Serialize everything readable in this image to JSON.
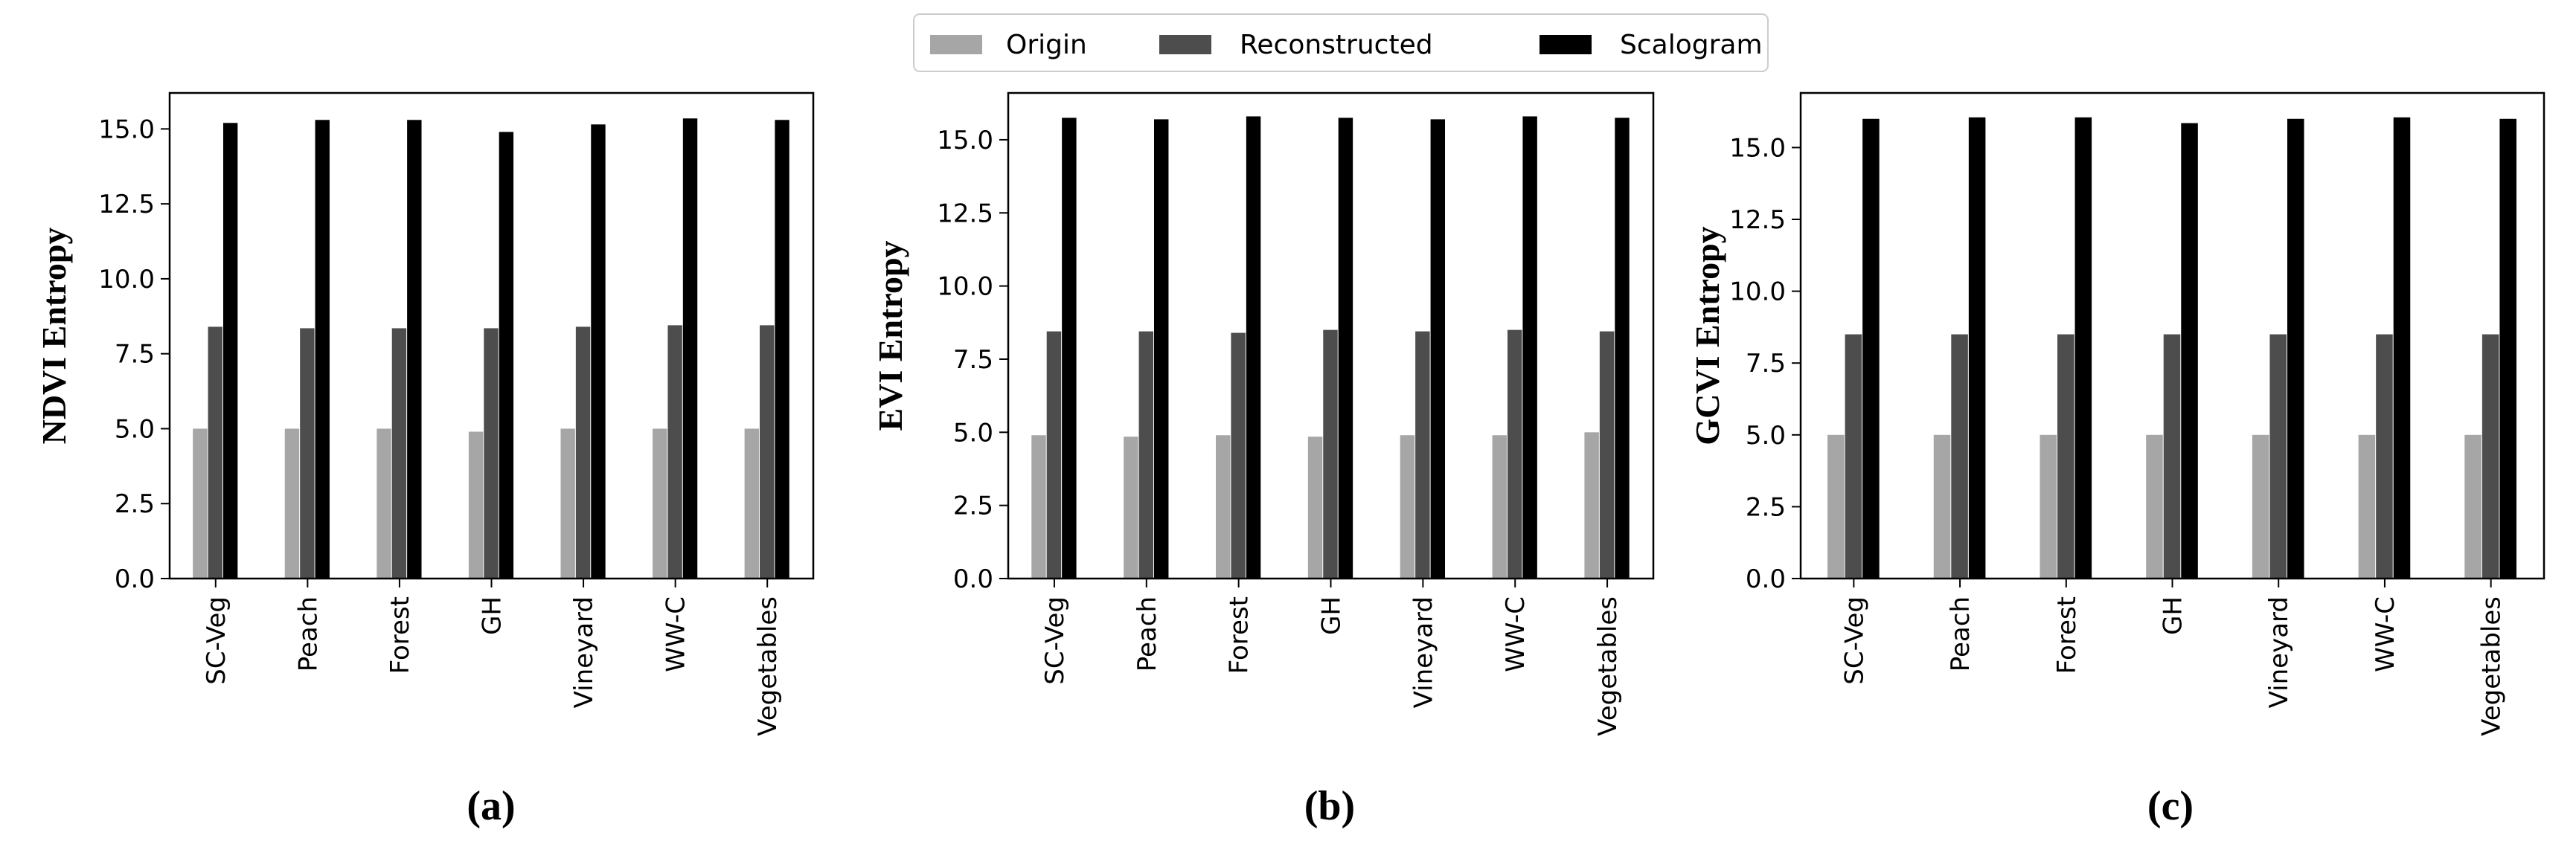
{
  "legend": {
    "entries": [
      {
        "name": "Origin",
        "color": "#a6a6a6"
      },
      {
        "name": "Reconstructed",
        "color": "#4d4d4d"
      },
      {
        "name": "Scalogram",
        "color": "#000000"
      }
    ],
    "placement": "top-center"
  },
  "chart_data": [
    {
      "type": "bar",
      "panel_label": "(a)",
      "ylabel": "NDVI Entropy",
      "categories": [
        "SC-Veg",
        "Peach",
        "Forest",
        "GH",
        "Vineyard",
        "WW-C",
        "Vegetables"
      ],
      "yticks": [
        "0.0",
        "2.5",
        "5.0",
        "7.5",
        "10.0",
        "12.5",
        "15.0"
      ],
      "ylim": [
        0,
        16.2
      ],
      "series": [
        {
          "name": "Origin",
          "values": [
            5.0,
            5.0,
            5.0,
            4.9,
            5.0,
            5.0,
            5.0
          ]
        },
        {
          "name": "Reconstructed",
          "values": [
            8.4,
            8.35,
            8.35,
            8.35,
            8.4,
            8.45,
            8.45
          ]
        },
        {
          "name": "Scalogram",
          "values": [
            15.2,
            15.3,
            15.3,
            14.9,
            15.15,
            15.35,
            15.3
          ]
        }
      ]
    },
    {
      "type": "bar",
      "panel_label": "(b)",
      "ylabel": "EVI Entropy",
      "categories": [
        "SC-Veg",
        "Peach",
        "Forest",
        "GH",
        "Vineyard",
        "WW-C",
        "Vegetables"
      ],
      "yticks": [
        "0.0",
        "2.5",
        "5.0",
        "7.5",
        "10.0",
        "12.5",
        "15.0"
      ],
      "ylim": [
        0,
        16.6
      ],
      "series": [
        {
          "name": "Origin",
          "values": [
            4.9,
            4.85,
            4.9,
            4.85,
            4.9,
            4.9,
            5.0
          ]
        },
        {
          "name": "Reconstructed",
          "values": [
            8.45,
            8.45,
            8.4,
            8.5,
            8.45,
            8.5,
            8.45
          ]
        },
        {
          "name": "Scalogram",
          "values": [
            15.75,
            15.7,
            15.8,
            15.75,
            15.7,
            15.8,
            15.75
          ]
        }
      ]
    },
    {
      "type": "bar",
      "panel_label": "(c)",
      "ylabel": "GCVI Entropy",
      "categories": [
        "SC-Veg",
        "Peach",
        "Forest",
        "GH",
        "Vineyard",
        "WW-C",
        "Vegetables"
      ],
      "yticks": [
        "0.0",
        "2.5",
        "5.0",
        "7.5",
        "10.0",
        "12.5",
        "15.0"
      ],
      "ylim": [
        0,
        16.9
      ],
      "series": [
        {
          "name": "Origin",
          "values": [
            5.0,
            5.0,
            5.0,
            5.0,
            5.0,
            5.0,
            5.0
          ]
        },
        {
          "name": "Reconstructed",
          "values": [
            8.5,
            8.5,
            8.5,
            8.5,
            8.5,
            8.5,
            8.5
          ]
        },
        {
          "name": "Scalogram",
          "values": [
            16.0,
            16.05,
            16.05,
            15.85,
            16.0,
            16.05,
            16.0
          ]
        }
      ]
    }
  ]
}
